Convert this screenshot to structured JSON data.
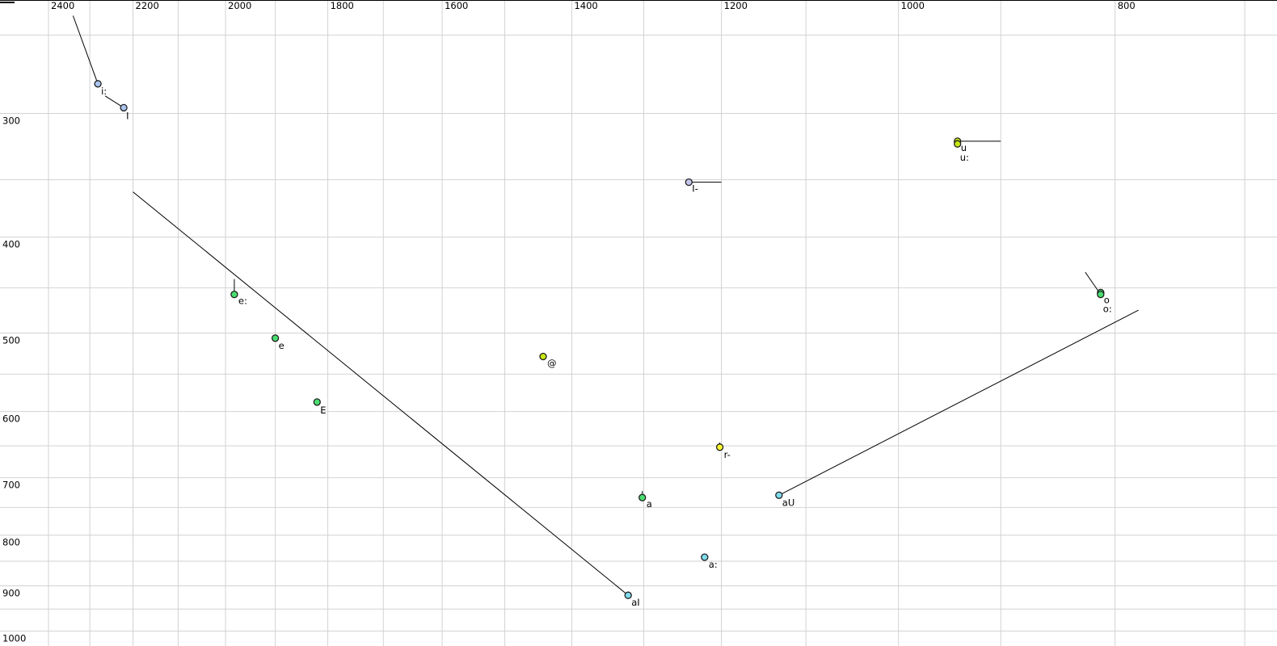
{
  "figure": {
    "background": "#ffffff",
    "grid_color": "#d2d2d2",
    "trajectory_color": "#000000",
    "text_color": "#000000"
  },
  "chart_data": {
    "type": "scatter",
    "title": "",
    "xlabel": "",
    "ylabel": "",
    "grid": true,
    "legend": "none",
    "x_axis": {
      "unit": "Hz",
      "position": "top",
      "scale": "log",
      "reversed": true,
      "range": [
        2460,
        680
      ],
      "tick_labels": [
        "2400",
        "2200",
        "2000",
        "1800",
        "1600",
        "1400",
        "1200",
        "1000",
        "800"
      ],
      "tick_values": [
        2400,
        2200,
        2000,
        1800,
        1600,
        1400,
        1200,
        1000,
        800
      ],
      "gridlines": [
        2400,
        2300,
        2200,
        2100,
        2000,
        1900,
        1800,
        1700,
        1600,
        1500,
        1400,
        1300,
        1200,
        1100,
        1000,
        900,
        800,
        700
      ]
    },
    "y_axis": {
      "unit": "Hz",
      "position": "left",
      "scale": "log",
      "reversed": false,
      "range": [
        235,
        1060
      ],
      "tick_labels": [
        "300",
        "400",
        "500",
        "600",
        "700",
        "800",
        "900",
        "1000"
      ],
      "tick_values": [
        300,
        400,
        500,
        600,
        700,
        800,
        900,
        1000
      ],
      "gridlines": [
        250,
        300,
        350,
        400,
        450,
        500,
        550,
        600,
        650,
        700,
        750,
        800,
        850,
        900,
        950,
        1000
      ]
    },
    "series": [
      {
        "label": "i:",
        "f2": 2281,
        "f1": 280,
        "color": "#aac4f0",
        "trajectory": [
          [
            2340,
            239
          ]
        ],
        "label_offset": [
          4,
          13
        ]
      },
      {
        "label": "I",
        "f2": 2221,
        "f1": 296,
        "color": "#aac4f0",
        "trajectory": [
          [
            2264,
            288
          ]
        ],
        "label_offset": [
          3,
          14
        ]
      },
      {
        "label": "u",
        "f2": 941,
        "f1": 320,
        "color": "#c8e614",
        "trajectory": [
          [
            900,
            320
          ]
        ],
        "label_offset": [
          4,
          12
        ]
      },
      {
        "label": "u:",
        "f2": 941,
        "f1": 322,
        "color": "#c8e614",
        "trajectory": [],
        "label_offset": [
          3,
          21
        ]
      },
      {
        "label": "I-",
        "f2": 1241,
        "f1": 352,
        "color": "#c6c6ee",
        "trajectory": [
          [
            1200,
            352
          ]
        ],
        "label_offset": [
          4,
          12
        ]
      },
      {
        "label": "e:",
        "f2": 1982,
        "f1": 457,
        "color": "#4ade70",
        "trajectory": [
          [
            1982,
            441
          ]
        ],
        "label_offset": [
          5,
          12
        ]
      },
      {
        "label": "e",
        "f2": 1900,
        "f1": 506,
        "color": "#4ade70",
        "trajectory": [],
        "label_offset": [
          4,
          13
        ]
      },
      {
        "label": "E",
        "f2": 1820,
        "f1": 587,
        "color": "#4ade70",
        "trajectory": [],
        "label_offset": [
          4,
          14
        ]
      },
      {
        "label": "@",
        "f2": 1442,
        "f1": 528,
        "color": "#c8e614",
        "trajectory": [],
        "label_offset": [
          5,
          12
        ]
      },
      {
        "label": "r-",
        "f2": 1202,
        "f1": 652,
        "color": "#f8f830",
        "trajectory": [
          [
            1202,
            645
          ]
        ],
        "label_offset": [
          5,
          13
        ]
      },
      {
        "label": "a",
        "f2": 1302,
        "f1": 733,
        "color": "#4ade70",
        "trajectory": [
          [
            1302,
            722
          ]
        ],
        "label_offset": [
          5,
          12
        ]
      },
      {
        "label": "aU",
        "f2": 1131,
        "f1": 729,
        "color": "#7fdcee",
        "trajectory": [
          [
            781,
            474
          ]
        ],
        "label_offset": [
          4,
          13
        ]
      },
      {
        "label": "a:",
        "f2": 1221,
        "f1": 842,
        "color": "#7fdcee",
        "trajectory": [],
        "label_offset": [
          5,
          13
        ]
      },
      {
        "label": "aI",
        "f2": 1321,
        "f1": 920,
        "color": "#7fdcee",
        "trajectory": [
          [
            2200,
            360
          ]
        ],
        "label_offset": [
          4,
          13
        ]
      },
      {
        "label": "o",
        "f2": 812,
        "f1": 455,
        "color": "#4ade70",
        "trajectory": [],
        "label_offset": [
          4,
          13
        ]
      },
      {
        "label": "o:",
        "f2": 812,
        "f1": 457,
        "color": "#4ade70",
        "trajectory": [
          [
            825,
            434
          ]
        ],
        "label_offset": [
          3,
          22
        ]
      }
    ]
  }
}
